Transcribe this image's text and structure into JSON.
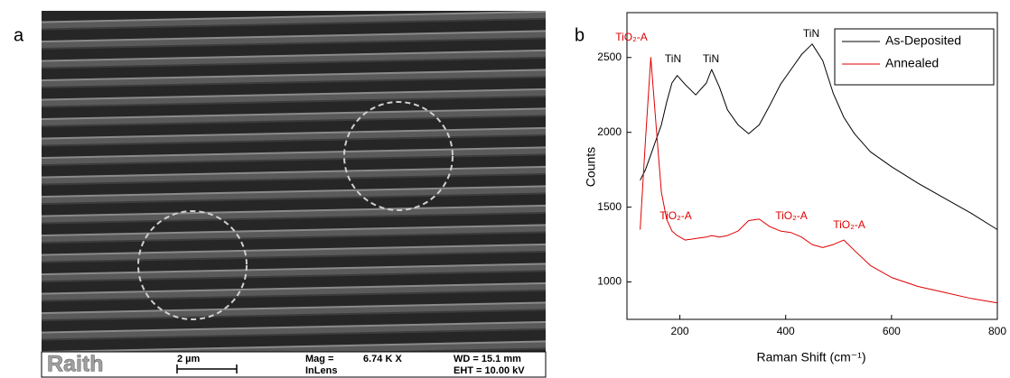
{
  "sem_image": {
    "panel_label": "a",
    "brand": "Raith",
    "scale_bar": "2 µm",
    "mag_label": "Mag =",
    "mag_value": "6.74 K X",
    "detector": "InLens",
    "wd": "WD = 15.1 mm",
    "eht": "EHT = 10.00 kV"
  },
  "chart_data": {
    "type": "line",
    "panel_label": "b",
    "x_label": "Raman Shift (cm⁻¹)",
    "y_label": "Counts",
    "x": [
      125,
      135,
      145,
      155,
      165,
      175,
      185,
      195,
      210,
      230,
      250,
      260,
      275,
      290,
      310,
      330,
      350,
      370,
      390,
      410,
      430,
      450,
      470,
      490,
      510,
      530,
      560,
      600,
      650,
      700,
      750,
      800
    ],
    "series": [
      {
        "name": "As-Deposited",
        "color": "#000000",
        "values": [
          1680,
          1750,
          1850,
          1950,
          2050,
          2200,
          2330,
          2380,
          2320,
          2250,
          2330,
          2420,
          2300,
          2150,
          2050,
          1990,
          2050,
          2180,
          2320,
          2420,
          2520,
          2590,
          2480,
          2260,
          2100,
          1990,
          1870,
          1770,
          1660,
          1560,
          1460,
          1350
        ]
      },
      {
        "name": "Annealed",
        "color": "#e00000",
        "values": [
          1350,
          1950,
          2500,
          2050,
          1600,
          1420,
          1340,
          1310,
          1280,
          1290,
          1300,
          1310,
          1300,
          1310,
          1340,
          1410,
          1420,
          1370,
          1340,
          1330,
          1300,
          1250,
          1230,
          1250,
          1280,
          1210,
          1110,
          1030,
          970,
          930,
          890,
          860
        ]
      }
    ],
    "annotations": [
      {
        "text": "TiO₂-A",
        "color": "#e00000"
      },
      {
        "text": "TiN",
        "color": "#000000"
      },
      {
        "text": "TiN",
        "color": "#000000"
      },
      {
        "text": "TiN",
        "color": "#000000"
      },
      {
        "text": "TiO₂-A",
        "color": "#e00000"
      },
      {
        "text": "TiO₂-A",
        "color": "#e00000"
      },
      {
        "text": "TiO₂-A",
        "color": "#e00000"
      }
    ],
    "xlim": [
      100,
      800
    ],
    "xticks": [
      200,
      400,
      600,
      800
    ],
    "ylim": [
      750,
      2800
    ],
    "yticks": [
      1000,
      1500,
      2000,
      2500
    ],
    "legend": "upper right"
  }
}
